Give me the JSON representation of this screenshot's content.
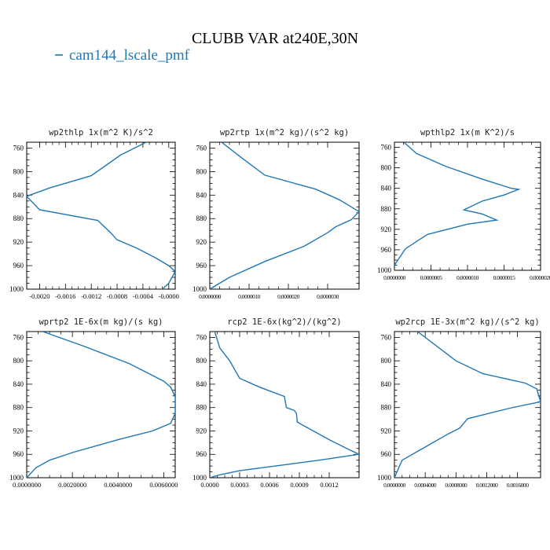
{
  "figure": {
    "title": "CLUBB VAR at240E,30N",
    "legend": [
      {
        "label": "cam144_lscale_pmf",
        "color": "#1f77b4"
      }
    ]
  },
  "chart_data": [
    {
      "type": "line",
      "title": "wp2thlp  1x(m^2 K)/s^2",
      "xlim": [
        -0.0022,
        0.0001
      ],
      "ylim": [
        1000,
        750
      ],
      "xticks": [
        -0.002,
        -0.0016,
        -0.0012,
        -0.0008,
        -0.0004,
        -0.0
      ],
      "xtick_labels": [
        "-0.0020",
        "-0.0016",
        "-0.0012",
        "-0.0008",
        "-0.0004",
        "-0.0000"
      ],
      "yticks": [
        760,
        800,
        840,
        880,
        920,
        960,
        1000
      ],
      "series": [
        {
          "color": "#1f77b4",
          "x": [
            -0.00035,
            -0.00075,
            -0.0012,
            -0.00185,
            -0.0022,
            -0.002,
            -0.0011,
            -0.0009,
            -0.0008,
            -0.0005,
            -0.0002,
            0.0,
            0.0001,
            0.0,
            -0.0001
          ],
          "y": [
            750,
            772,
            807,
            828,
            842,
            865,
            883,
            904,
            916,
            930,
            947,
            960,
            970,
            990,
            1000
          ]
        }
      ]
    },
    {
      "type": "line",
      "title": "wp2rtp  1x(m^2 kg)/(s^2 kg)",
      "xlim": [
        0.0,
        3.8e-06
      ],
      "ylim": [
        1000,
        750
      ],
      "xticks": [
        0.0,
        1e-06,
        2e-06,
        3e-06
      ],
      "xtick_labels": [
        "0.0000000",
        "0.0000010",
        "0.0000020",
        "0.0000030"
      ],
      "xtick_label_style": "tight",
      "yticks": [
        760,
        800,
        840,
        880,
        920,
        960,
        1000
      ],
      "series": [
        {
          "color": "#1f77b4",
          "x": [
            3e-07,
            8e-07,
            1.4e-06,
            2.7e-06,
            3.3e-06,
            3.8e-06,
            3.6e-06,
            3.2e-06,
            3e-06,
            2.4e-06,
            1.4e-06,
            5e-07,
            0.0
          ],
          "y": [
            750,
            776,
            806,
            830,
            848,
            868,
            882,
            894,
            904,
            927,
            953,
            980,
            1000
          ]
        }
      ]
    },
    {
      "type": "line",
      "title": "wpthlp2  1x(m K^2)/s",
      "xlim": [
        0.0,
        2e-06
      ],
      "ylim": [
        1000,
        750
      ],
      "xticks": [
        0.0,
        5e-07,
        1e-06,
        1.5e-06,
        2e-06
      ],
      "xtick_labels": [
        "0.0000000",
        "0.0000005",
        "0.0000010",
        "0.0000015",
        "0.0000020"
      ],
      "xtick_label_style": "tight",
      "yticks": [
        760,
        800,
        840,
        880,
        920,
        960,
        1000
      ],
      "series": [
        {
          "color": "#1f77b4",
          "x": [
            1.3e-07,
            3e-07,
            7e-07,
            1.2e-06,
            1.6e-06,
            1.7e-06,
            1.5e-06,
            1.2e-06,
            9.5e-07,
            1.2e-06,
            1.4e-06,
            1e-06,
            4.5e-07,
            1.5e-07,
            0.0
          ],
          "y": [
            750,
            772,
            797,
            822,
            840,
            842,
            853,
            865,
            882,
            890,
            902,
            910,
            930,
            958,
            990
          ]
        }
      ]
    },
    {
      "type": "line",
      "title": "wprtp2  1E-6x(m kg)/(s kg)",
      "xlim": [
        0.0,
        0.0065
      ],
      "ylim": [
        1000,
        750
      ],
      "xticks": [
        0.0,
        0.002,
        0.004,
        0.006
      ],
      "xtick_labels": [
        "0.0000000",
        "0.0020000",
        "0.0040000",
        "0.0060000"
      ],
      "yticks": [
        760,
        800,
        840,
        880,
        920,
        960,
        1000
      ],
      "series": [
        {
          "color": "#1f77b4",
          "x": [
            0.0007,
            0.0025,
            0.0045,
            0.006,
            0.0063,
            0.0065,
            0.0065,
            0.0063,
            0.0055,
            0.004,
            0.002,
            0.001,
            0.0004,
            0.0
          ],
          "y": [
            750,
            775,
            805,
            835,
            845,
            862,
            890,
            907,
            920,
            935,
            957,
            970,
            983,
            1000
          ]
        }
      ]
    },
    {
      "type": "line",
      "title": "rcp2  1E-6x(kg^2)/(kg^2)",
      "xlim": [
        0.0,
        0.0015
      ],
      "ylim": [
        1000,
        750
      ],
      "xticks": [
        0.0,
        0.0003,
        0.0006,
        0.0009,
        0.0012
      ],
      "xtick_labels": [
        "0.0000",
        "0.0003",
        "0.0006",
        "0.0009",
        "0.0012"
      ],
      "yticks": [
        760,
        800,
        840,
        880,
        920,
        960,
        1000
      ],
      "series": [
        {
          "color": "#1f77b4",
          "x": [
            5e-05,
            0.0001,
            0.0002,
            0.0003,
            0.0005,
            0.00075,
            0.00077,
            0.00085,
            0.00087,
            0.00088,
            0.0012,
            0.0014,
            0.0015,
            0.0011,
            0.0003,
            0.0001,
            0.0
          ],
          "y": [
            750,
            778,
            800,
            830,
            845,
            861,
            880,
            885,
            890,
            905,
            935,
            952,
            960,
            970,
            988,
            995,
            1000
          ]
        }
      ]
    },
    {
      "type": "line",
      "title": "wp2rcp  1E-3x(m^2 kg)/(s^2 kg)",
      "xlim": [
        0.0,
        0.0019
      ],
      "ylim": [
        1000,
        750
      ],
      "xticks": [
        0.0,
        0.0004,
        0.0008,
        0.0012,
        0.0016
      ],
      "xtick_labels": [
        "0.0000000",
        "0.0004000",
        "0.0008000",
        "0.0012000",
        "0.0016000"
      ],
      "xtick_label_style": "tight",
      "yticks": [
        760,
        800,
        840,
        880,
        920,
        960,
        1000
      ],
      "series": [
        {
          "color": "#1f77b4",
          "x": [
            0.0003,
            0.0008,
            0.00115,
            0.0017,
            0.00185,
            0.0019,
            0.0015,
            0.00095,
            0.00085,
            0.0007,
            0.0005,
            0.0003,
            0.0001,
            5e-05,
            0.0
          ],
          "y": [
            750,
            800,
            822,
            838,
            848,
            870,
            881,
            899,
            915,
            925,
            940,
            955,
            970,
            985,
            1000
          ]
        }
      ]
    }
  ]
}
